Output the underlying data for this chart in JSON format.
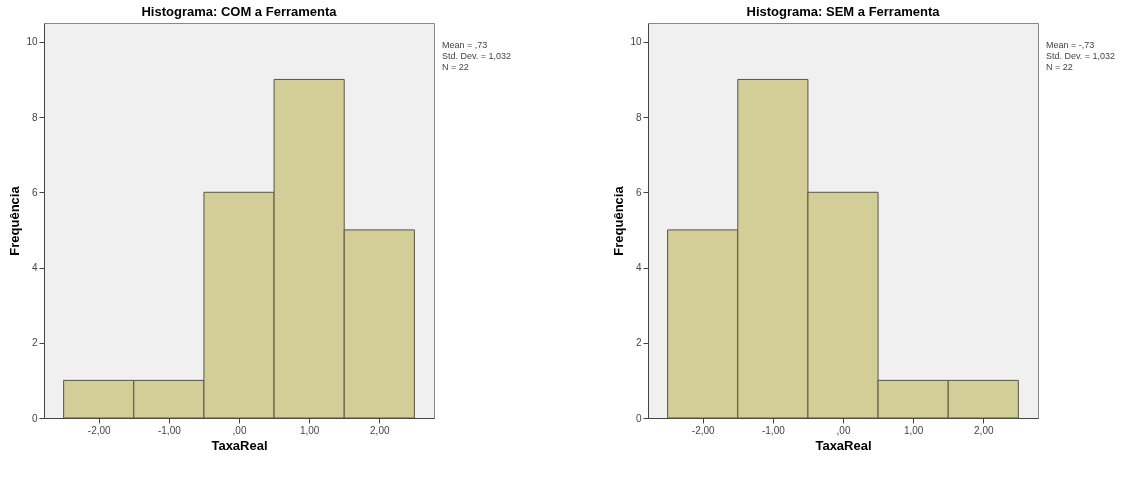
{
  "chart_data": [
    {
      "type": "histogram",
      "title": "Histograma: COM a Ferramenta",
      "xlabel": "TaxaReal",
      "ylabel": "Frequência",
      "bins": [
        -2.5,
        -1.5,
        -0.5,
        0.5,
        1.5,
        2.5
      ],
      "values": [
        1,
        1,
        6,
        9,
        5
      ],
      "color": "#d3ce97",
      "xlim": [
        -2.78,
        2.78
      ],
      "ylim": [
        0,
        10.5
      ],
      "xticks": [
        {
          "value": -2,
          "label": "-2,00"
        },
        {
          "value": -1,
          "label": "-1,00"
        },
        {
          "value": 0,
          "label": ",00"
        },
        {
          "value": 1,
          "label": "1,00"
        },
        {
          "value": 2,
          "label": "2,00"
        }
      ],
      "yticks": [
        0,
        2,
        4,
        6,
        8,
        10
      ],
      "grid": false,
      "annotations": [
        "Mean = ,73",
        "Std. Dev. = 1,032",
        "N = 22"
      ]
    },
    {
      "type": "histogram",
      "title": "Histograma: SEM a Ferramenta",
      "xlabel": "TaxaReal",
      "ylabel": "Frequência",
      "bins": [
        -2.5,
        -1.5,
        -0.5,
        0.5,
        1.5,
        2.5
      ],
      "values": [
        5,
        9,
        6,
        1,
        1
      ],
      "color": "#d3ce97",
      "xlim": [
        -2.78,
        2.78
      ],
      "ylim": [
        0,
        10.5
      ],
      "xticks": [
        {
          "value": -2,
          "label": "-2,00"
        },
        {
          "value": -1,
          "label": "-1,00"
        },
        {
          "value": 0,
          "label": ",00"
        },
        {
          "value": 1,
          "label": "1,00"
        },
        {
          "value": 2,
          "label": "2,00"
        }
      ],
      "yticks": [
        0,
        2,
        4,
        6,
        8,
        10
      ],
      "grid": false,
      "annotations": [
        "Mean = -,73",
        "Std. Dev. = 1,032",
        "N = 22"
      ]
    }
  ]
}
